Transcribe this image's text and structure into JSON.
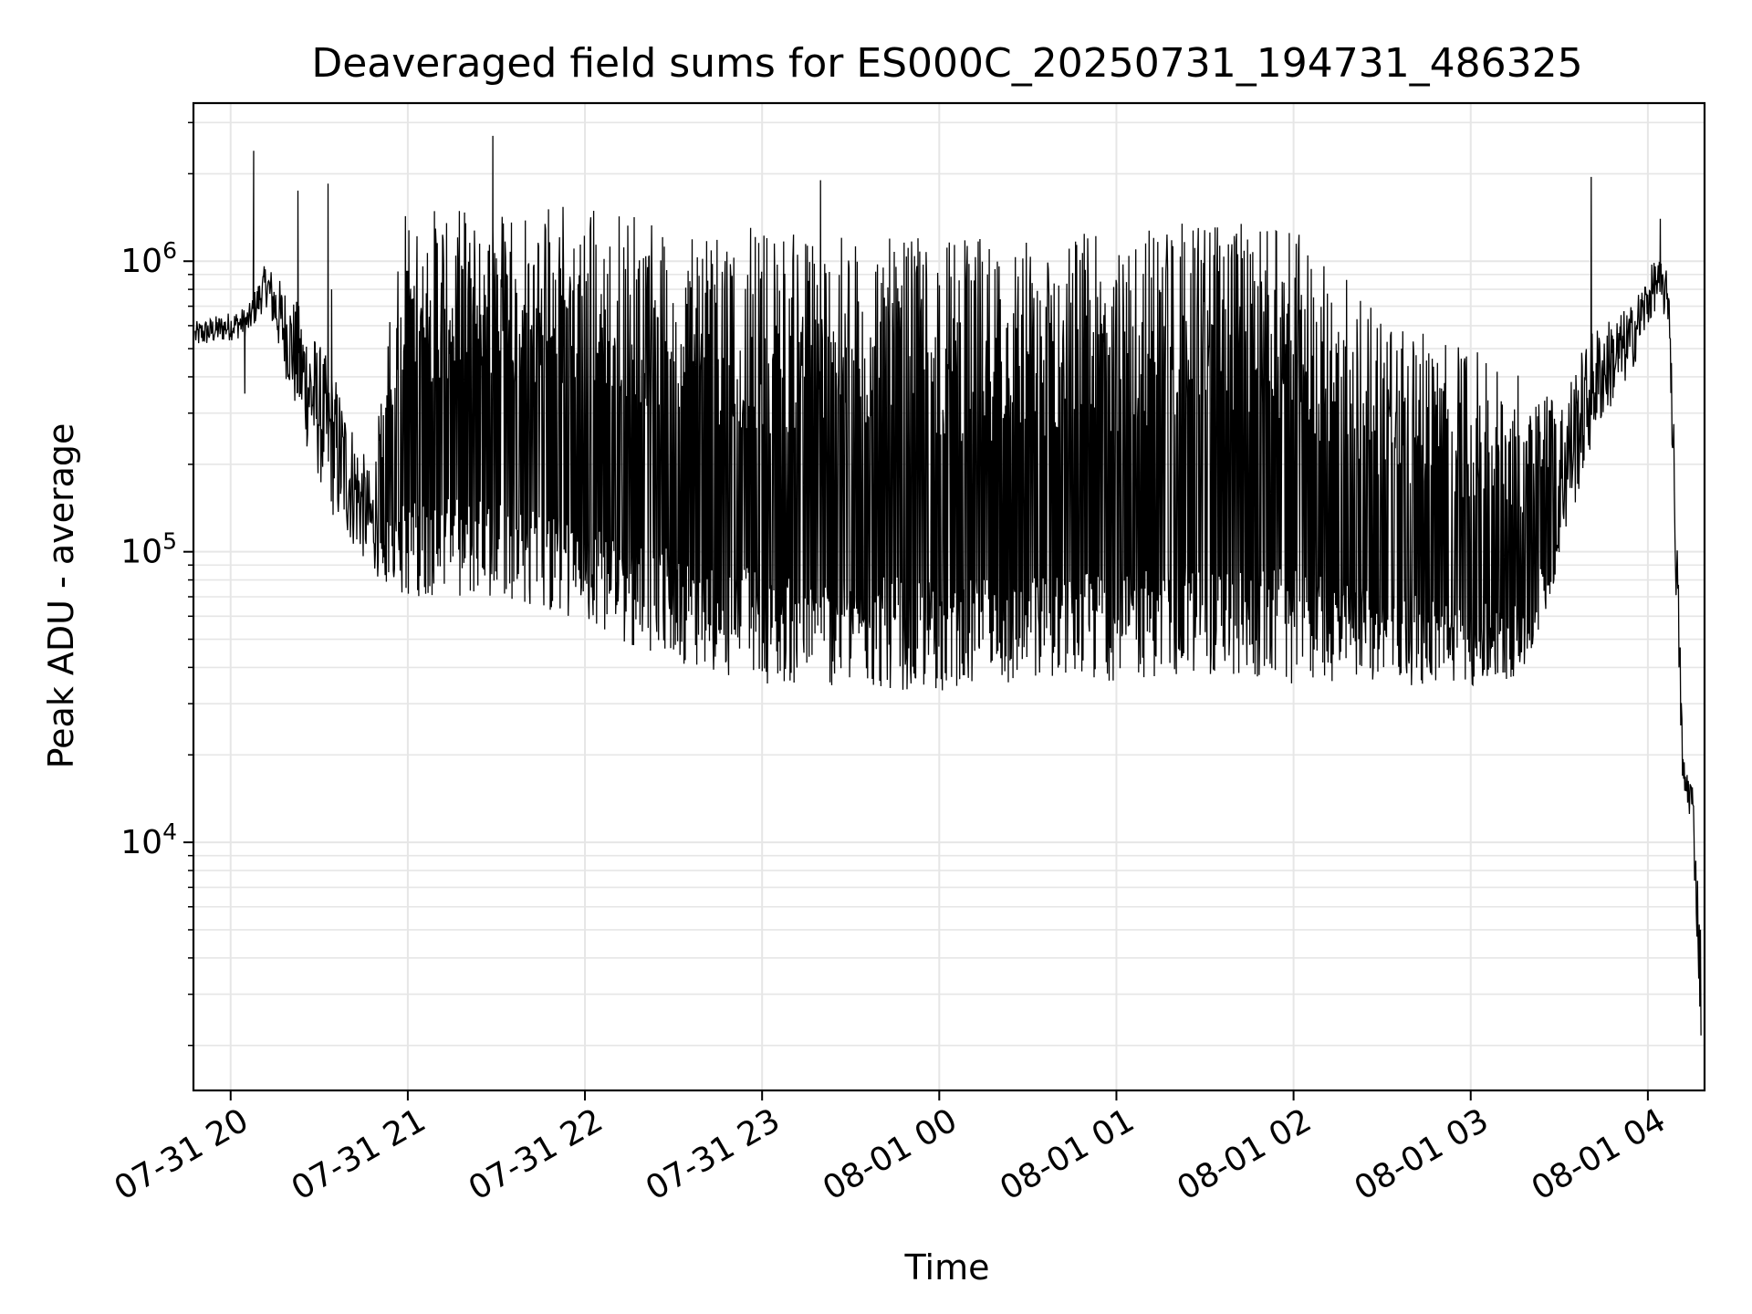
{
  "chart_data": {
    "type": "line",
    "title": "Deaveraged field sums for ES000C_20250731_194731_486325",
    "xlabel": "Time",
    "ylabel": "Peak ADU - average",
    "yscale": "log",
    "ylim": [
      1400,
      3500000
    ],
    "xlim": [
      "07-31 19:47",
      "08-01 04:20"
    ],
    "grid": true,
    "line_color": "#000000",
    "grid_color": "#e6e6e6",
    "x_ticks": [
      {
        "label": "07-31 20",
        "hour": 20
      },
      {
        "label": "07-31 21",
        "hour": 21
      },
      {
        "label": "07-31 22",
        "hour": 22
      },
      {
        "label": "07-31 23",
        "hour": 23
      },
      {
        "label": "08-01 00",
        "hour": 24
      },
      {
        "label": "08-01 01",
        "hour": 25
      },
      {
        "label": "08-01 02",
        "hour": 26
      },
      {
        "label": "08-01 03",
        "hour": 27
      },
      {
        "label": "08-01 04",
        "hour": 28
      }
    ],
    "y_ticks": [
      {
        "base": "10",
        "exp": "4",
        "value": 10000
      },
      {
        "base": "10",
        "exp": "5",
        "value": 100000
      },
      {
        "base": "10",
        "exp": "6",
        "value": 1000000
      }
    ],
    "envelope": {
      "x_hour": [
        19.8,
        20.1,
        20.2,
        20.4,
        20.6,
        20.8,
        20.95,
        21.5,
        22.0,
        22.5,
        23.0,
        23.5,
        24.0,
        24.5,
        25.0,
        25.5,
        26.0,
        26.5,
        27.0,
        27.3,
        27.5,
        27.7,
        27.9,
        28.05,
        28.12,
        28.15,
        28.2,
        28.25,
        28.3
      ],
      "upper": [
        620000,
        700000,
        1000000,
        700000,
        400000,
        180000,
        1500000,
        1600000,
        1600000,
        1400000,
        1300000,
        1200000,
        1200000,
        1200000,
        1300000,
        1400000,
        1300000,
        700000,
        500000,
        400000,
        350000,
        600000,
        700000,
        1050000,
        900000,
        250000,
        20000,
        17000,
        5000
      ],
      "lower": [
        500000,
        550000,
        700000,
        250000,
        120000,
        85000,
        70000,
        70000,
        55000,
        42000,
        35000,
        34000,
        33000,
        34000,
        36000,
        38000,
        35000,
        35000,
        34000,
        36000,
        90000,
        250000,
        400000,
        700000,
        600000,
        100000,
        13000,
        12000,
        2000
      ]
    },
    "spikes": [
      {
        "x": 20.13,
        "y": 2400000
      },
      {
        "x": 20.38,
        "y": 1750000
      },
      {
        "x": 20.55,
        "y": 1850000
      },
      {
        "x": 20.57,
        "y": 800000
      },
      {
        "x": 21.48,
        "y": 2700000
      },
      {
        "x": 23.33,
        "y": 1900000
      },
      {
        "x": 27.68,
        "y": 1950000
      },
      {
        "x": 28.07,
        "y": 1400000
      },
      {
        "x": 20.08,
        "y": 350000
      }
    ]
  }
}
